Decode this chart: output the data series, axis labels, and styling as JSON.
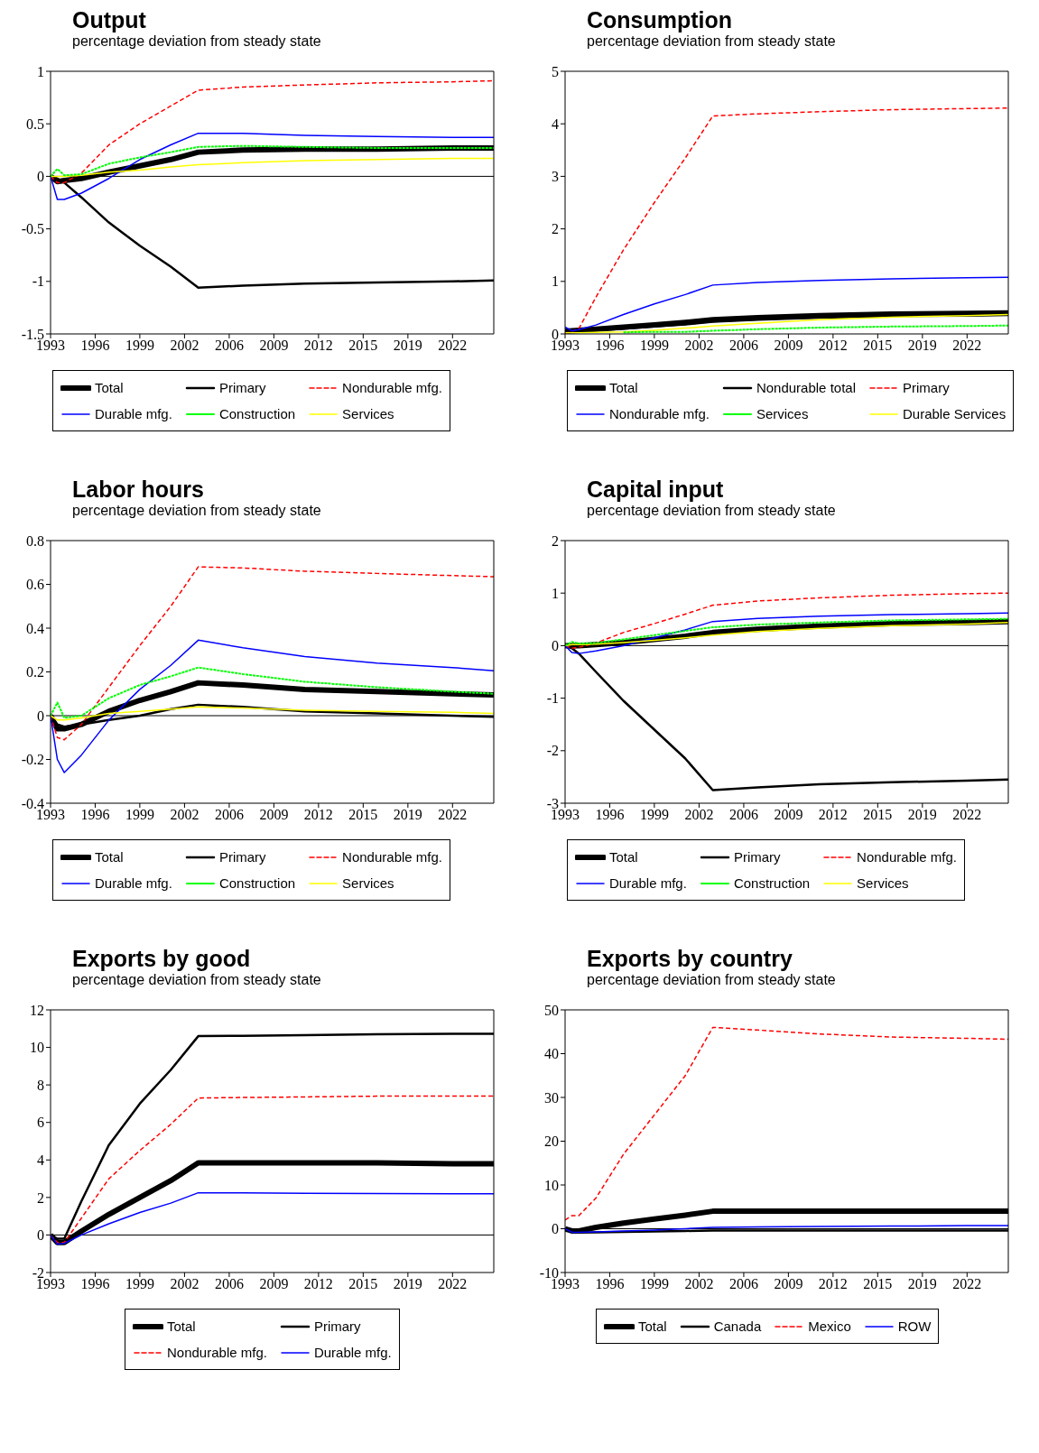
{
  "chart_data": [
    {
      "type": "line",
      "title": "Output",
      "subtitle": "percentage deviation from steady state",
      "x": [
        "1993-01",
        "1993-07",
        "1994-01",
        "1995-04",
        "1997-04",
        "1999-07",
        "2001-10",
        "2003-10",
        "2007-01",
        "2011-07",
        "2016-10",
        "2022-04",
        "2025-04"
      ],
      "xlim": [
        "1993-01",
        "2025-04"
      ],
      "xticks": [
        {
          "value": "1993-01",
          "label": "1993"
        },
        {
          "value": "1996-04",
          "label": "1996"
        },
        {
          "value": "1999-07",
          "label": "1999"
        },
        {
          "value": "2002-10",
          "label": "2002"
        },
        {
          "value": "2006-01",
          "label": "2006"
        },
        {
          "value": "2009-04",
          "label": "2009"
        },
        {
          "value": "2012-07",
          "label": "2012"
        },
        {
          "value": "2015-10",
          "label": "2015"
        },
        {
          "value": "2019-01",
          "label": "2019"
        },
        {
          "value": "2022-04",
          "label": "2022"
        }
      ],
      "ylim": [
        -1.5,
        1
      ],
      "yticks": [
        -1.5,
        -1,
        -0.5,
        0,
        0.5,
        1
      ],
      "grid": false,
      "legend": "bottom",
      "marker": "none",
      "ref_lines": [
        {
          "axis": "y",
          "value": 0,
          "color": "#000000"
        }
      ],
      "series": [
        {
          "name": "Total",
          "color": "#000000",
          "values": [
            0,
            -0.05,
            -0.04,
            -0.02,
            0.04,
            0.1,
            0.16,
            0.23,
            0.25,
            0.26,
            0.26,
            0.27,
            0.27
          ]
        },
        {
          "name": "Primary",
          "color": "#000000",
          "values": [
            0,
            -0.02,
            -0.06,
            -0.2,
            -0.44,
            -0.66,
            -0.86,
            -1.06,
            -1.04,
            -1.02,
            -1.01,
            -1.0,
            -0.99
          ]
        },
        {
          "name": "Nondurable mfg.",
          "color": "#ff0000",
          "line_style": "dashed",
          "values": [
            0,
            -0.06,
            -0.06,
            0.03,
            0.3,
            0.5,
            0.67,
            0.82,
            0.85,
            0.87,
            0.89,
            0.9,
            0.91
          ]
        },
        {
          "name": "Durable mfg.",
          "color": "#0000ff",
          "values": [
            0,
            -0.22,
            -0.22,
            -0.16,
            -0.02,
            0.16,
            0.3,
            0.41,
            0.41,
            0.39,
            0.38,
            0.37,
            0.37
          ]
        },
        {
          "name": "Construction",
          "color": "#00ff00",
          "line_style": "dotted",
          "values": [
            0,
            0.07,
            0.01,
            0.02,
            0.12,
            0.18,
            0.23,
            0.28,
            0.29,
            0.28,
            0.27,
            0.27,
            0.27
          ]
        },
        {
          "name": "Services",
          "color": "#ffff00",
          "values": [
            0,
            0,
            0,
            0.01,
            0.04,
            0.06,
            0.09,
            0.11,
            0.13,
            0.15,
            0.16,
            0.17,
            0.17
          ]
        }
      ]
    },
    {
      "type": "line",
      "title": "Consumption",
      "subtitle": "percentage deviation from steady state",
      "x": [
        "1993-01",
        "1993-07",
        "1994-01",
        "1995-04",
        "1997-04",
        "1999-07",
        "2001-10",
        "2003-10",
        "2007-01",
        "2011-07",
        "2016-10",
        "2022-04",
        "2025-04"
      ],
      "xlim": [
        "1993-01",
        "2025-04"
      ],
      "xticks": [
        {
          "value": "1993-01",
          "label": "1993"
        },
        {
          "value": "1996-04",
          "label": "1996"
        },
        {
          "value": "1999-07",
          "label": "1999"
        },
        {
          "value": "2002-10",
          "label": "2002"
        },
        {
          "value": "2006-01",
          "label": "2006"
        },
        {
          "value": "2009-04",
          "label": "2009"
        },
        {
          "value": "2012-07",
          "label": "2012"
        },
        {
          "value": "2015-10",
          "label": "2015"
        },
        {
          "value": "2019-01",
          "label": "2019"
        },
        {
          "value": "2022-04",
          "label": "2022"
        }
      ],
      "ylim": [
        0,
        5
      ],
      "yticks": [
        0,
        1,
        2,
        3,
        4,
        5
      ],
      "grid": false,
      "legend": "bottom",
      "marker": "none",
      "series": [
        {
          "name": "Total",
          "color": "#000000",
          "values": [
            0.05,
            0.06,
            0.07,
            0.09,
            0.13,
            0.17,
            0.22,
            0.27,
            0.31,
            0.35,
            0.38,
            0.39,
            0.4
          ]
        },
        {
          "name": "Nondurable total",
          "color": "#000000",
          "values": [
            0.03,
            0.04,
            0.05,
            0.07,
            0.1,
            0.14,
            0.18,
            0.23,
            0.27,
            0.31,
            0.34,
            0.35,
            0.36
          ]
        },
        {
          "name": "Primary",
          "color": "#ff0000",
          "line_style": "dashed",
          "values": [
            0,
            0.05,
            0.1,
            0.7,
            1.6,
            2.5,
            3.35,
            4.15,
            4.19,
            4.23,
            4.27,
            4.29,
            4.3
          ]
        },
        {
          "name": "Nondurable mfg.",
          "color": "#0000ff",
          "values": [
            0.13,
            0.06,
            0.08,
            0.17,
            0.37,
            0.57,
            0.75,
            0.93,
            0.98,
            1.02,
            1.05,
            1.07,
            1.08
          ]
        },
        {
          "name": "Services",
          "color": "#00ff00",
          "line_style": "dotted",
          "values": [
            null,
            null,
            null,
            null,
            0.03,
            0.04,
            0.04,
            0.06,
            0.09,
            0.12,
            0.14,
            0.15,
            0.16
          ]
        },
        {
          "name": "Durable Services",
          "color": "#ffff00",
          "values": [
            0.02,
            0.02,
            0.02,
            0.03,
            0.04,
            0.07,
            0.11,
            0.15,
            0.2,
            0.27,
            0.32,
            0.35,
            0.37
          ]
        }
      ]
    },
    {
      "type": "line",
      "title": "Labor hours",
      "subtitle": "percentage deviation from steady state",
      "x": [
        "1993-01",
        "1993-07",
        "1994-01",
        "1995-04",
        "1997-04",
        "1999-07",
        "2001-10",
        "2003-10",
        "2007-01",
        "2011-07",
        "2016-10",
        "2022-04",
        "2025-04"
      ],
      "xlim": [
        "1993-01",
        "2025-04"
      ],
      "xticks": [
        {
          "value": "1993-01",
          "label": "1993"
        },
        {
          "value": "1996-04",
          "label": "1996"
        },
        {
          "value": "1999-07",
          "label": "1999"
        },
        {
          "value": "2002-10",
          "label": "2002"
        },
        {
          "value": "2006-01",
          "label": "2006"
        },
        {
          "value": "2009-04",
          "label": "2009"
        },
        {
          "value": "2012-07",
          "label": "2012"
        },
        {
          "value": "2015-10",
          "label": "2015"
        },
        {
          "value": "2019-01",
          "label": "2019"
        },
        {
          "value": "2022-04",
          "label": "2022"
        }
      ],
      "ylim": [
        -0.4,
        0.8
      ],
      "yticks": [
        -0.4,
        -0.2,
        0,
        0.2,
        0.4,
        0.6,
        0.8
      ],
      "grid": false,
      "legend": "bottom",
      "marker": "none",
      "ref_lines": [
        {
          "axis": "y",
          "value": 0,
          "color": "#000000"
        }
      ],
      "series": [
        {
          "name": "Total",
          "color": "#000000",
          "values": [
            0,
            -0.06,
            -0.06,
            -0.04,
            0.02,
            0.07,
            0.11,
            0.15,
            0.14,
            0.12,
            0.11,
            0.1,
            0.095
          ]
        },
        {
          "name": "Primary",
          "color": "#000000",
          "values": [
            0,
            -0.04,
            -0.05,
            -0.04,
            -0.02,
            0,
            0.03,
            0.05,
            0.04,
            0.02,
            0.01,
            0,
            -0.005
          ]
        },
        {
          "name": "Nondurable mfg.",
          "color": "#ff0000",
          "line_style": "dashed",
          "values": [
            0,
            -0.1,
            -0.11,
            -0.04,
            0.13,
            0.32,
            0.5,
            0.68,
            0.675,
            0.66,
            0.65,
            0.64,
            0.635
          ]
        },
        {
          "name": "Durable mfg.",
          "color": "#0000ff",
          "values": [
            0,
            -0.2,
            -0.26,
            -0.18,
            -0.02,
            0.12,
            0.23,
            0.345,
            0.31,
            0.27,
            0.24,
            0.22,
            0.205
          ]
        },
        {
          "name": "Construction",
          "color": "#00ff00",
          "line_style": "dotted",
          "values": [
            0,
            0.06,
            -0.01,
            0,
            0.08,
            0.14,
            0.18,
            0.22,
            0.19,
            0.155,
            0.13,
            0.11,
            0.1
          ]
        },
        {
          "name": "Services",
          "color": "#ffff00",
          "values": [
            0,
            -0.02,
            -0.02,
            -0.01,
            0.01,
            0.02,
            0.03,
            0.04,
            0.035,
            0.025,
            0.02,
            0.015,
            0.01
          ]
        }
      ]
    },
    {
      "type": "line",
      "title": "Capital input",
      "subtitle": "percentage deviation from steady state",
      "x": [
        "1993-01",
        "1993-07",
        "1994-01",
        "1995-04",
        "1997-04",
        "1999-07",
        "2001-10",
        "2003-10",
        "2007-01",
        "2011-07",
        "2016-10",
        "2022-04",
        "2025-04"
      ],
      "xlim": [
        "1993-01",
        "2025-04"
      ],
      "xticks": [
        {
          "value": "1993-01",
          "label": "1993"
        },
        {
          "value": "1996-04",
          "label": "1996"
        },
        {
          "value": "1999-07",
          "label": "1999"
        },
        {
          "value": "2002-10",
          "label": "2002"
        },
        {
          "value": "2006-01",
          "label": "2006"
        },
        {
          "value": "2009-04",
          "label": "2009"
        },
        {
          "value": "2012-07",
          "label": "2012"
        },
        {
          "value": "2015-10",
          "label": "2015"
        },
        {
          "value": "2019-01",
          "label": "2019"
        },
        {
          "value": "2022-04",
          "label": "2022"
        }
      ],
      "ylim": [
        -3,
        2
      ],
      "yticks": [
        -3,
        -2,
        -1,
        0,
        1,
        2
      ],
      "grid": false,
      "legend": "bottom",
      "marker": "none",
      "ref_lines": [
        {
          "axis": "y",
          "value": 0,
          "color": "#000000"
        }
      ],
      "series": [
        {
          "name": "Total",
          "color": "#000000",
          "values": [
            0,
            0,
            0,
            0.02,
            0.06,
            0.12,
            0.18,
            0.25,
            0.31,
            0.37,
            0.42,
            0.44,
            0.46
          ]
        },
        {
          "name": "Primary",
          "color": "#000000",
          "values": [
            0,
            -0.05,
            -0.15,
            -0.5,
            -1.05,
            -1.6,
            -2.15,
            -2.75,
            -2.7,
            -2.64,
            -2.6,
            -2.57,
            -2.55
          ]
        },
        {
          "name": "Nondurable mfg.",
          "color": "#ff0000",
          "line_style": "dashed",
          "values": [
            0,
            -0.05,
            -0.03,
            0.05,
            0.25,
            0.42,
            0.6,
            0.77,
            0.85,
            0.91,
            0.96,
            0.99,
            1.0
          ]
        },
        {
          "name": "Durable mfg.",
          "color": "#0000ff",
          "values": [
            0,
            -0.13,
            -0.15,
            -0.1,
            0,
            0.15,
            0.3,
            0.46,
            0.52,
            0.56,
            0.59,
            0.61,
            0.62
          ]
        },
        {
          "name": "Construction",
          "color": "#00ff00",
          "line_style": "dotted",
          "values": [
            0,
            0.07,
            0.04,
            0.05,
            0.12,
            0.2,
            0.28,
            0.35,
            0.4,
            0.44,
            0.48,
            0.5,
            0.51
          ]
        },
        {
          "name": "Services",
          "color": "#ffff00",
          "values": [
            0,
            0.02,
            0.02,
            0.03,
            0.06,
            0.1,
            0.15,
            0.2,
            0.27,
            0.33,
            0.38,
            0.41,
            0.44
          ]
        }
      ]
    },
    {
      "type": "line",
      "title": "Exports by good",
      "subtitle": "percentage deviation from steady state",
      "x": [
        "1993-01",
        "1993-07",
        "1994-01",
        "1995-04",
        "1997-04",
        "1999-07",
        "2001-10",
        "2003-10",
        "2007-01",
        "2011-07",
        "2016-10",
        "2022-04",
        "2025-04"
      ],
      "xlim": [
        "1993-01",
        "2025-04"
      ],
      "xticks": [
        {
          "value": "1993-01",
          "label": "1993"
        },
        {
          "value": "1996-04",
          "label": "1996"
        },
        {
          "value": "1999-07",
          "label": "1999"
        },
        {
          "value": "2002-10",
          "label": "2002"
        },
        {
          "value": "2006-01",
          "label": "2006"
        },
        {
          "value": "2009-04",
          "label": "2009"
        },
        {
          "value": "2012-07",
          "label": "2012"
        },
        {
          "value": "2015-10",
          "label": "2015"
        },
        {
          "value": "2019-01",
          "label": "2019"
        },
        {
          "value": "2022-04",
          "label": "2022"
        }
      ],
      "ylim": [
        -2,
        12
      ],
      "yticks": [
        -2,
        0,
        2,
        4,
        6,
        8,
        10,
        12
      ],
      "grid": false,
      "legend": "bottom",
      "marker": "none",
      "ref_lines": [
        {
          "axis": "y",
          "value": 0,
          "color": "#000000"
        }
      ],
      "series": [
        {
          "name": "Total",
          "color": "#000000",
          "values": [
            0,
            -0.4,
            -0.4,
            0.2,
            1.1,
            2.0,
            2.9,
            3.85,
            3.85,
            3.85,
            3.85,
            3.8,
            3.8
          ]
        },
        {
          "name": "Primary",
          "color": "#000000",
          "values": [
            0,
            -0.2,
            -0.2,
            1.8,
            4.8,
            7.0,
            8.8,
            10.6,
            10.62,
            10.65,
            10.7,
            10.72,
            10.72
          ]
        },
        {
          "name": "Nondurable mfg.",
          "color": "#ff0000",
          "line_style": "dashed",
          "values": [
            0,
            -0.4,
            -0.4,
            0.9,
            3.0,
            4.5,
            5.9,
            7.3,
            7.33,
            7.36,
            7.4,
            7.4,
            7.4
          ]
        },
        {
          "name": "Durable mfg.",
          "color": "#0000ff",
          "values": [
            0,
            -0.5,
            -0.45,
            0,
            0.6,
            1.2,
            1.7,
            2.25,
            2.24,
            2.22,
            2.21,
            2.2,
            2.2
          ]
        }
      ]
    },
    {
      "type": "line",
      "title": "Exports by country",
      "subtitle": "percentage deviation from steady state",
      "x": [
        "1993-01",
        "1993-07",
        "1994-01",
        "1995-04",
        "1997-04",
        "1999-07",
        "2001-10",
        "2003-10",
        "2007-01",
        "2011-07",
        "2016-10",
        "2022-04",
        "2025-04"
      ],
      "xlim": [
        "1993-01",
        "2025-04"
      ],
      "xticks": [
        {
          "value": "1993-01",
          "label": "1993"
        },
        {
          "value": "1996-04",
          "label": "1996"
        },
        {
          "value": "1999-07",
          "label": "1999"
        },
        {
          "value": "2002-10",
          "label": "2002"
        },
        {
          "value": "2006-01",
          "label": "2006"
        },
        {
          "value": "2009-04",
          "label": "2009"
        },
        {
          "value": "2012-07",
          "label": "2012"
        },
        {
          "value": "2015-10",
          "label": "2015"
        },
        {
          "value": "2019-01",
          "label": "2019"
        },
        {
          "value": "2022-04",
          "label": "2022"
        }
      ],
      "ylim": [
        -10,
        50
      ],
      "yticks": [
        -10,
        0,
        10,
        20,
        30,
        40,
        50
      ],
      "grid": false,
      "legend": "bottom",
      "marker": "none",
      "ref_lines": [
        {
          "axis": "y",
          "value": 0,
          "color": "#000000"
        }
      ],
      "series": [
        {
          "name": "Total",
          "color": "#000000",
          "values": [
            0,
            -0.5,
            -0.5,
            0.3,
            1.3,
            2.2,
            3.1,
            4.0,
            4.0,
            4.0,
            4.0,
            4.0,
            4.0
          ]
        },
        {
          "name": "Canada",
          "color": "#000000",
          "values": [
            0,
            -0.8,
            -0.9,
            -0.8,
            -0.7,
            -0.6,
            -0.5,
            -0.4,
            -0.4,
            -0.4,
            -0.4,
            -0.4,
            -0.4
          ]
        },
        {
          "name": "Mexico",
          "color": "#ff0000",
          "line_style": "dashed",
          "values": [
            2,
            3,
            3,
            7,
            17,
            26,
            35,
            46,
            45.4,
            44.5,
            43.8,
            43.5,
            43.3
          ]
        },
        {
          "name": "ROW",
          "color": "#0000ff",
          "values": [
            0,
            -0.8,
            -0.8,
            -0.7,
            -0.5,
            -0.3,
            0,
            0.3,
            0.4,
            0.5,
            0.6,
            0.7,
            0.7
          ]
        }
      ]
    }
  ]
}
